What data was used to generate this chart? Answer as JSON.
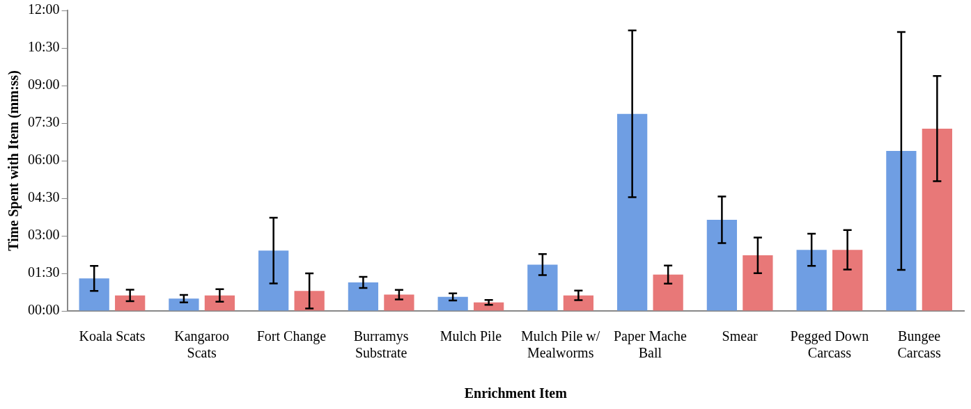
{
  "chart_data": {
    "type": "bar",
    "xlabel": "Enrichment Item",
    "ylabel": "Time Spent with Item (mm:ss)",
    "categories": [
      "Koala Scats",
      "Kangaroo Scats",
      "Fort Change",
      "Burramys Substrate",
      "Mulch Pile",
      "Mulch Pile w/ Mealworms",
      "Paper Mache Ball",
      "Smear",
      "Pegged Down Carcass",
      "Bungee Carcass"
    ],
    "series": [
      {
        "color": "#6f9ee3",
        "values": [
          1.3,
          0.49,
          2.41,
          1.14,
          0.56,
          1.85,
          7.87,
          3.64,
          2.44,
          6.39
        ],
        "errors": [
          0.5,
          0.15,
          1.31,
          0.22,
          0.14,
          0.42,
          3.33,
          0.93,
          0.64,
          4.75
        ]
      },
      {
        "color": "#e87878",
        "values": [
          0.62,
          0.62,
          0.8,
          0.65,
          0.34,
          0.62,
          1.45,
          2.22,
          2.44,
          7.28
        ],
        "errors": [
          0.23,
          0.25,
          0.7,
          0.19,
          0.1,
          0.19,
          0.36,
          0.71,
          0.79,
          2.1
        ]
      }
    ],
    "ylim": [
      0,
      12
    ],
    "yticks": [
      {
        "value": 0,
        "label": "00:00"
      },
      {
        "value": 1.5,
        "label": "01:30"
      },
      {
        "value": 3,
        "label": "03:00"
      },
      {
        "value": 4.5,
        "label": "04:30"
      },
      {
        "value": 6,
        "label": "06:00"
      },
      {
        "value": 7.5,
        "label": "07:30"
      },
      {
        "value": 9,
        "label": "09:00"
      },
      {
        "value": 10.5,
        "label": "10:30"
      },
      {
        "value": 12,
        "label": "12:00"
      }
    ],
    "grid": false,
    "legend": false
  }
}
